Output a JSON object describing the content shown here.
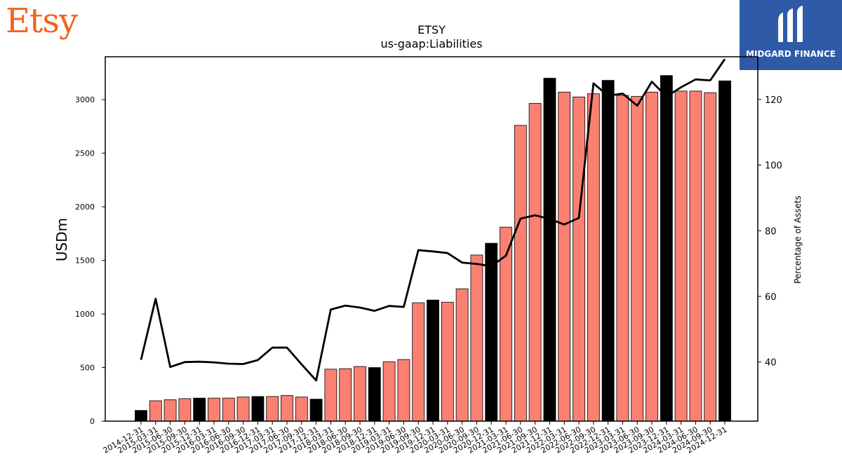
{
  "branding": {
    "left_logo": "Etsy",
    "right_logo": "MIDGARD FINANCE"
  },
  "colors": {
    "bar_default": "#fa8072",
    "bar_year_end": "#000000",
    "line": "#000000",
    "etsy_orange": "#f1641e",
    "midgard_blue": "#2e5aa8"
  },
  "chart_data": {
    "type": "bar",
    "title": "ETSY",
    "subtitle": "us-gaap:Liabilities",
    "ylabel": "USDm",
    "y2label": "Percentage of Assets",
    "ylim": [
      0,
      3400
    ],
    "y2lim": [
      22,
      133
    ],
    "yticks": [
      0,
      500,
      1000,
      1500,
      2000,
      2500,
      3000
    ],
    "y2ticks": [
      40,
      60,
      80,
      100,
      120
    ],
    "grid": false,
    "categories": [
      "2014-12-31",
      "2015-03-31",
      "2015-06-30",
      "2015-09-30",
      "2015-12-31",
      "2016-03-31",
      "2016-06-30",
      "2016-09-30",
      "2016-12-31",
      "2017-03-31",
      "2017-06-30",
      "2017-09-30",
      "2017-12-31",
      "2018-03-31",
      "2018-06-30",
      "2018-09-30",
      "2018-12-31",
      "2019-03-31",
      "2019-06-30",
      "2019-09-30",
      "2019-12-31",
      "2020-03-31",
      "2020-06-30",
      "2020-09-30",
      "2020-12-31",
      "2021-03-31",
      "2021-06-30",
      "2021-09-30",
      "2021-12-31",
      "2022-03-31",
      "2022-06-30",
      "2022-09-30",
      "2022-12-31",
      "2023-03-31",
      "2023-06-30",
      "2023-09-30",
      "2023-12-31",
      "2024-03-31",
      "2024-06-30",
      "2024-09-30",
      "2024-12-31"
    ],
    "series": [
      {
        "type": "bar",
        "values": [
          100,
          190,
          200,
          210,
          215,
          215,
          215,
          225,
          230,
          230,
          240,
          225,
          205,
          485,
          490,
          510,
          500,
          555,
          575,
          1105,
          1130,
          1110,
          1235,
          1550,
          1660,
          1810,
          2760,
          2965,
          3200,
          3070,
          3025,
          3055,
          3180,
          3040,
          3030,
          3070,
          3225,
          3080,
          3080,
          3065,
          3175
        ]
      },
      {
        "type": "line",
        "values": [
          40.7,
          59.3,
          38.5,
          40,
          40.1,
          39.9,
          39.5,
          39.4,
          40.6,
          44.4,
          44.4,
          39.3,
          34.4,
          56,
          57.2,
          56.6,
          55.6,
          57.1,
          56.8,
          74.1,
          73.7,
          73.2,
          70.3,
          69.9,
          69.2,
          72.4,
          83.7,
          84.7,
          83.6,
          81.9,
          83.9,
          124.9,
          121.1,
          121.8,
          118.1,
          125.4,
          120.9,
          123.7,
          126.1,
          125.8,
          132.3
        ]
      }
    ],
    "year_end_highlight": [
      true,
      false,
      false,
      false,
      true,
      false,
      false,
      false,
      true,
      false,
      false,
      false,
      true,
      false,
      false,
      false,
      true,
      false,
      false,
      false,
      true,
      false,
      false,
      false,
      true,
      false,
      false,
      false,
      true,
      false,
      false,
      false,
      true,
      false,
      false,
      false,
      true,
      false,
      false,
      false,
      true
    ]
  }
}
